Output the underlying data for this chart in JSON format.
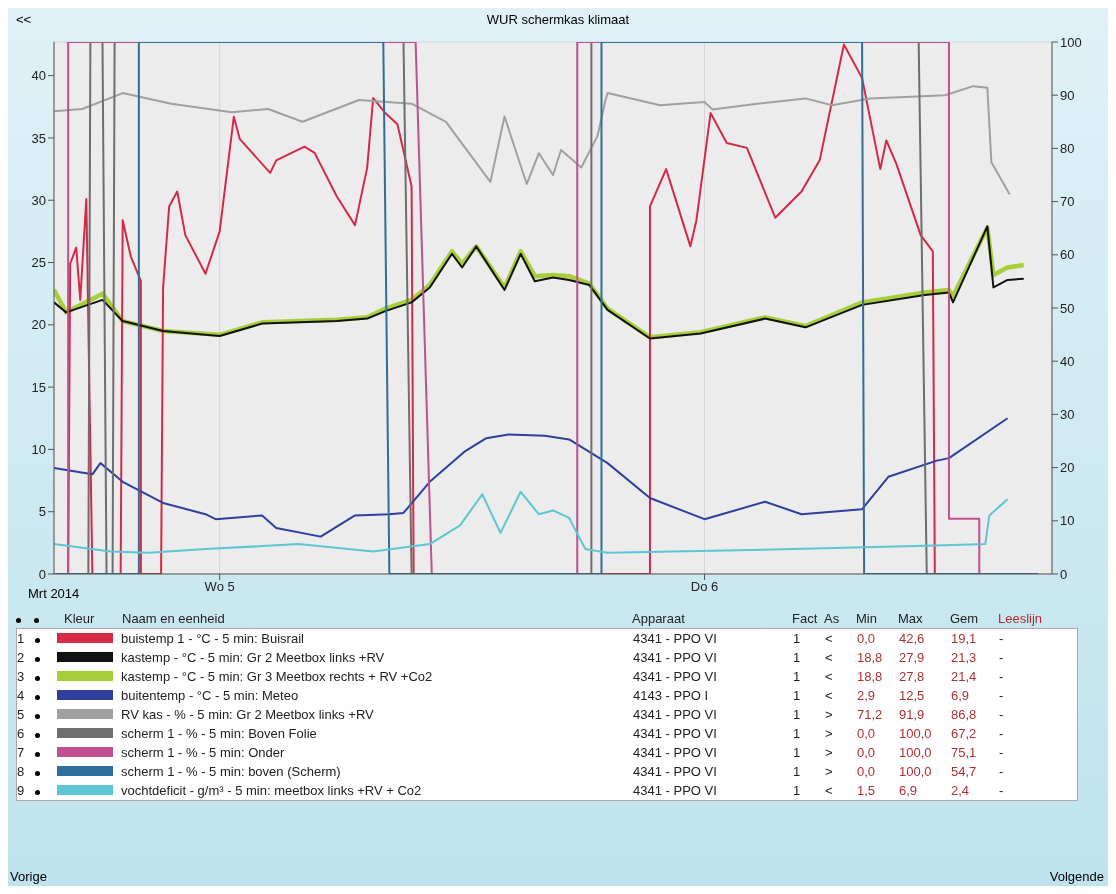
{
  "chart_data": {
    "type": "line",
    "title": "WUR schermkas klimaat",
    "xlabel": "Mrt 2014",
    "legend": "bottom",
    "grid": true,
    "xlim": [
      "2014-03-04T15:48",
      "2014-03-06T17:12"
    ],
    "xticks": [
      {
        "value": "2014-03-05",
        "label": "Wo 5"
      },
      {
        "value": "2014-03-06",
        "label": "Do 6"
      }
    ],
    "ylim": [
      0,
      42.7
    ],
    "yticks": [
      0,
      5,
      10,
      15,
      20,
      25,
      30,
      35,
      40
    ],
    "y2lim": [
      0,
      100
    ],
    "y2ticks": [
      0,
      10,
      20,
      30,
      40,
      50,
      60,
      70,
      80,
      90,
      100
    ],
    "series": [
      {
        "name": "buistemp 1 - °C - 5 min: Buisrail",
        "color": "#d42a48",
        "x": [
          "2014-03-04T15:48",
          "2014-03-04T16:30",
          "2014-03-04T16:36",
          "2014-03-04T16:54",
          "2014-03-04T17:06",
          "2014-03-04T17:24",
          "2014-03-04T17:42",
          "2014-03-04T19:06",
          "2014-03-04T19:12",
          "2014-03-04T19:36",
          "2014-03-04T20:06",
          "2014-03-04T20:06",
          "2014-03-04T21:06",
          "2014-03-04T21:12",
          "2014-03-04T21:30",
          "2014-03-04T21:54",
          "2014-03-04T22:18",
          "2014-03-04T23:18",
          "2014-03-05T00:00",
          "2014-03-05T00:42",
          "2014-03-05T01:00",
          "2014-03-05T02:30",
          "2014-03-05T02:48",
          "2014-03-05T04:12",
          "2014-03-05T04:42",
          "2014-03-05T05:48",
          "2014-03-05T06:42",
          "2014-03-05T07:18",
          "2014-03-05T07:36",
          "2014-03-05T08:12",
          "2014-03-05T08:48",
          "2014-03-05T09:30",
          "2014-03-05T09:36",
          "2014-03-05T21:18",
          "2014-03-05T21:18",
          "2014-03-05T22:06",
          "2014-03-05T23:18",
          "2014-03-05T23:36",
          "2014-03-06T00:18",
          "2014-03-06T01:06",
          "2014-03-06T02:06",
          "2014-03-06T03:30",
          "2014-03-06T04:48",
          "2014-03-06T05:42",
          "2014-03-06T06:54",
          "2014-03-06T07:48",
          "2014-03-06T08:42",
          "2014-03-06T09:00",
          "2014-03-06T09:30",
          "2014-03-06T10:42",
          "2014-03-06T11:18",
          "2014-03-06T11:24",
          "2014-03-06T16:30"
        ],
        "values": [
          0,
          0,
          24.9,
          26.2,
          22,
          30.1,
          0,
          0,
          28.4,
          25.5,
          23.5,
          0,
          0,
          23,
          29.5,
          30.7,
          27.2,
          24.1,
          27.5,
          36.7,
          34.9,
          32.2,
          33.2,
          34.3,
          33.8,
          30.3,
          28,
          32.6,
          38.2,
          37,
          36.1,
          31.1,
          0,
          0,
          29.5,
          32.5,
          26.3,
          28.4,
          37,
          34.6,
          34.2,
          28.6,
          30.7,
          33.2,
          42.5,
          39.8,
          32.5,
          34.8,
          32.9,
          27.2,
          25.9,
          0,
          0
        ]
      },
      {
        "name": "kastemp - °C - 5 min: Gr 2 Meetbox links +RV",
        "color": "#111111",
        "x": [
          "2014-03-04T15:48",
          "2014-03-04T16:24",
          "2014-03-04T18:12",
          "2014-03-04T19:12",
          "2014-03-04T21:12",
          "2014-03-05T00:00",
          "2014-03-05T02:06",
          "2014-03-05T05:48",
          "2014-03-05T07:18",
          "2014-03-05T08:12",
          "2014-03-05T09:30",
          "2014-03-05T10:24",
          "2014-03-05T11:30",
          "2014-03-05T12:00",
          "2014-03-05T12:42",
          "2014-03-05T14:06",
          "2014-03-05T14:54",
          "2014-03-05T15:36",
          "2014-03-05T16:30",
          "2014-03-05T17:18",
          "2014-03-05T18:18",
          "2014-03-05T19:12",
          "2014-03-05T21:18",
          "2014-03-05T23:48",
          "2014-03-06T03:00",
          "2014-03-06T05:00",
          "2014-03-06T07:48",
          "2014-03-06T10:54",
          "2014-03-06T12:06",
          "2014-03-06T12:18",
          "2014-03-06T14:00",
          "2014-03-06T14:18",
          "2014-03-06T15:00",
          "2014-03-06T15:48"
        ],
        "values": [
          21.8,
          21.0,
          22.0,
          20.3,
          19.5,
          19.1,
          20.1,
          20.3,
          20.5,
          21.1,
          21.8,
          23,
          25.7,
          24.6,
          26.3,
          22.8,
          25.7,
          23.5,
          23.8,
          23.6,
          23.2,
          21.2,
          18.9,
          19.3,
          20.5,
          19.8,
          21.6,
          22.4,
          22.6,
          21.8,
          27.9,
          23.0,
          23.6,
          23.7
        ]
      },
      {
        "name": "kastemp - °C - 5 min: Gr 3 Meetbox rechts + RV +Co2",
        "color": "#a6cf3a",
        "x": [
          "2014-03-04T15:48",
          "2014-03-04T16:24",
          "2014-03-04T18:12",
          "2014-03-04T19:12",
          "2014-03-04T21:12",
          "2014-03-05T00:00",
          "2014-03-05T02:06",
          "2014-03-05T05:48",
          "2014-03-05T07:18",
          "2014-03-05T08:12",
          "2014-03-05T09:30",
          "2014-03-05T10:24",
          "2014-03-05T11:30",
          "2014-03-05T12:00",
          "2014-03-05T12:42",
          "2014-03-05T14:06",
          "2014-03-05T14:54",
          "2014-03-05T15:36",
          "2014-03-05T16:30",
          "2014-03-05T17:18",
          "2014-03-05T18:18",
          "2014-03-05T19:12",
          "2014-03-05T21:18",
          "2014-03-05T23:48",
          "2014-03-06T03:00",
          "2014-03-06T05:00",
          "2014-03-06T07:48",
          "2014-03-06T10:54",
          "2014-03-06T12:06",
          "2014-03-06T12:18",
          "2014-03-06T14:00",
          "2014-03-06T14:18",
          "2014-03-06T15:00",
          "2014-03-06T15:48"
        ],
        "values": [
          22.8,
          21.0,
          22.5,
          20.3,
          19.5,
          19.2,
          20.2,
          20.4,
          20.6,
          21.3,
          22.0,
          23.2,
          25.9,
          24.9,
          26.3,
          23.0,
          25.9,
          23.9,
          24.0,
          23.9,
          23.3,
          21.3,
          19.0,
          19.4,
          20.6,
          19.9,
          21.8,
          22.6,
          22.8,
          22.3,
          27.8,
          24.0,
          24.6,
          24.8
        ]
      },
      {
        "name": "buitentemp - °C - 5 min: Meteo",
        "color": "#2e3f9e",
        "x": [
          "2014-03-04T15:48",
          "2014-03-04T17:42",
          "2014-03-04T18:06",
          "2014-03-04T19:12",
          "2014-03-04T21:12",
          "2014-03-04T23:18",
          "2014-03-04T23:48",
          "2014-03-05T02:06",
          "2014-03-05T02:48",
          "2014-03-05T05:00",
          "2014-03-05T06:42",
          "2014-03-05T08:24",
          "2014-03-05T09:06",
          "2014-03-05T10:24",
          "2014-03-05T12:06",
          "2014-03-05T13:12",
          "2014-03-05T14:18",
          "2014-03-05T16:06",
          "2014-03-05T17:18",
          "2014-03-05T19:12",
          "2014-03-05T21:18",
          "2014-03-06T00:00",
          "2014-03-06T03:00",
          "2014-03-06T04:48",
          "2014-03-06T07:48",
          "2014-03-06T09:06",
          "2014-03-06T11:30",
          "2014-03-06T12:06",
          "2014-03-06T15:00"
        ],
        "values": [
          8.5,
          8.0,
          8.9,
          7.4,
          5.7,
          4.8,
          4.4,
          4.7,
          3.7,
          3.0,
          4.7,
          4.8,
          4.9,
          7.4,
          9.8,
          10.9,
          11.2,
          11.1,
          10.8,
          8.9,
          6.1,
          4.4,
          5.8,
          4.8,
          5.2,
          7.8,
          9.1,
          9.3,
          12.5
        ]
      },
      {
        "name": "RV kas - % - 5 min: Gr 2 Meetbox links +RV",
        "color": "#a0a0a0",
        "axis": "y2",
        "x": [
          "2014-03-04T15:48",
          "2014-03-04T17:12",
          "2014-03-04T19:12",
          "2014-03-04T21:36",
          "2014-03-05T00:36",
          "2014-03-05T02:24",
          "2014-03-05T04:06",
          "2014-03-05T06:54",
          "2014-03-05T09:30",
          "2014-03-05T11:12",
          "2014-03-05T13:24",
          "2014-03-05T14:06",
          "2014-03-05T15:12",
          "2014-03-05T15:48",
          "2014-03-05T16:30",
          "2014-03-05T16:54",
          "2014-03-05T17:54",
          "2014-03-05T18:42",
          "2014-03-05T19:06",
          "2014-03-05T19:12",
          "2014-03-05T21:48",
          "2014-03-06T00:00",
          "2014-03-06T00:24",
          "2014-03-06T02:36",
          "2014-03-06T05:00",
          "2014-03-06T06:18",
          "2014-03-06T08:12",
          "2014-03-06T11:54",
          "2014-03-06T13:18",
          "2014-03-06T14:00",
          "2014-03-06T14:12",
          "2014-03-06T15:06"
        ],
        "values": [
          87.0,
          87.4,
          90.4,
          88.4,
          86.8,
          87.4,
          85.0,
          89.1,
          88.4,
          85.0,
          73.7,
          86.0,
          73.3,
          79.1,
          75.0,
          79.7,
          76.4,
          82.3,
          89.1,
          90.4,
          88.1,
          88.7,
          87.3,
          88.4,
          89.4,
          88.1,
          89.4,
          90.0,
          91.7,
          91.4,
          77.4,
          71.4
        ]
      },
      {
        "name": "scherm 1 - % - 5 min: Boven Folie",
        "color": "#6e6e6e",
        "axis": "y2",
        "x": [
          "2014-03-04T15:48",
          "2014-03-04T17:30",
          "2014-03-04T17:36",
          "2014-03-04T18:12",
          "2014-03-04T18:24",
          "2014-03-04T18:42",
          "2014-03-04T18:48",
          "2014-03-05T09:06",
          "2014-03-05T09:30",
          "2014-03-05T18:24",
          "2014-03-05T18:24",
          "2014-03-06T10:36",
          "2014-03-06T11:00",
          "2014-03-06T16:30"
        ],
        "values": [
          0,
          0,
          100,
          100,
          0,
          0,
          100,
          100,
          0,
          0,
          100,
          100,
          0,
          0
        ]
      },
      {
        "name": "scherm 1 - % - 5 min: Onder",
        "color": "#c05090",
        "axis": "y2",
        "x": [
          "2014-03-04T15:48",
          "2014-03-04T16:30",
          "2014-03-04T16:30",
          "2014-03-05T09:42",
          "2014-03-05T10:30",
          "2014-03-05T17:42",
          "2014-03-05T17:42",
          "2014-03-06T12:06",
          "2014-03-06T12:06",
          "2014-03-06T13:36",
          "2014-03-06T13:36",
          "2014-03-06T16:30"
        ],
        "values": [
          0,
          0,
          100,
          100,
          0,
          0,
          100,
          100,
          10.4,
          10.4,
          0,
          0
        ]
      },
      {
        "name": "scherm 1 - % - 5 min: boven (Scherm)",
        "color": "#2d6e9c",
        "axis": "y2",
        "x": [
          "2014-03-04T15:48",
          "2014-03-04T20:00",
          "2014-03-04T20:00",
          "2014-03-05T08:06",
          "2014-03-05T08:24",
          "2014-03-05T18:54",
          "2014-03-05T18:54",
          "2014-03-06T07:48",
          "2014-03-06T07:54",
          "2014-03-06T16:30"
        ],
        "values": [
          0,
          0,
          100,
          100,
          0,
          0,
          100,
          100,
          0,
          0
        ]
      },
      {
        "name": "vochtdeficit - g/m³ - 5 min: meetbox links +RV + Co2",
        "color": "#5cc6d4",
        "x": [
          "2014-03-04T15:48",
          "2014-03-04T18:36",
          "2014-03-04T20:30",
          "2014-03-04T23:18",
          "2014-03-05T03:54",
          "2014-03-05T07:36",
          "2014-03-05T10:24",
          "2014-03-05T11:54",
          "2014-03-05T13:00",
          "2014-03-05T13:54",
          "2014-03-05T14:54",
          "2014-03-05T15:48",
          "2014-03-05T16:30",
          "2014-03-05T17:18",
          "2014-03-05T18:06",
          "2014-03-05T19:12",
          "2014-03-06T04:24",
          "2014-03-06T11:54",
          "2014-03-06T13:54",
          "2014-03-06T14:06",
          "2014-03-06T15:00"
        ],
        "values": [
          2.4,
          1.8,
          1.7,
          2.0,
          2.4,
          1.8,
          2.4,
          3.9,
          6.4,
          3.3,
          6.6,
          4.8,
          5.1,
          4.5,
          2.0,
          1.7,
          2.0,
          2.3,
          2.4,
          4.7,
          6.0
        ]
      }
    ],
    "annotations": [
      "<<",
      "Vorige",
      "Volgende",
      "Kleur",
      "Naam en eenheid",
      "Apparaat",
      "Fact",
      "As",
      "Min",
      "Max",
      "Gem",
      "Leeslijn",
      "1",
      "4341 - PPO VI",
      "1",
      "<",
      "0,0",
      "42,6",
      "19,1",
      "-",
      "2",
      "4341 - PPO VI",
      "1",
      "<",
      "18,8",
      "27,9",
      "21,3",
      "-",
      "3",
      "4341 - PPO VI",
      "1",
      "<",
      "18,8",
      "27,8",
      "21,4",
      "-",
      "4",
      "4143 - PPO I",
      "1",
      "<",
      "2,9",
      "12,5",
      "6,9",
      "-",
      "5",
      "4341 - PPO VI",
      "1",
      ">",
      "71,2",
      "91,9",
      "86,8",
      "-",
      "6",
      "4341 - PPO VI",
      "1",
      ">",
      "0,0",
      "100,0",
      "67,2",
      "-",
      "7",
      "4341 - PPO VI",
      "1",
      ">",
      "0,0",
      "100,0",
      "75,1",
      "-",
      "8",
      "4341 - PPO VI",
      "1",
      ">",
      "0,0",
      "100,0",
      "54,7",
      "-",
      "9",
      "4341 - PPO VI",
      "1",
      "<",
      "1,5",
      "6,9",
      "2,4",
      "-"
    ]
  }
}
